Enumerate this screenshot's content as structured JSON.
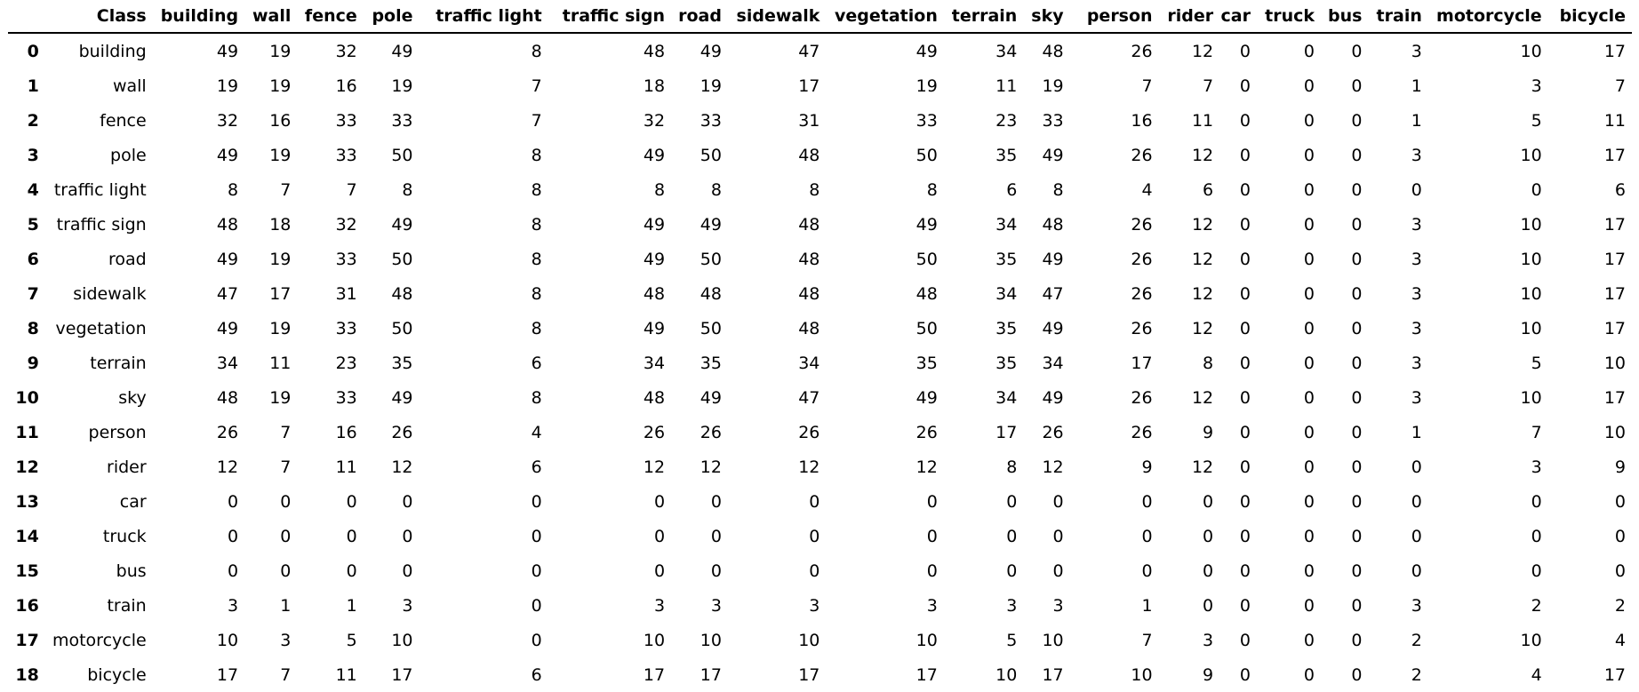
{
  "table": {
    "columns": [
      "",
      "Class",
      "building",
      "wall",
      "fence",
      "pole",
      "traffic light",
      "traffic sign",
      "road",
      "sidewalk",
      "vegetation",
      "terrain",
      "sky",
      "person",
      "rider",
      "car",
      "truck",
      "bus",
      "train",
      "motorcycle",
      "bicycle"
    ],
    "rows": [
      [
        "0",
        "building",
        "49",
        "19",
        "32",
        "49",
        "8",
        "48",
        "49",
        "47",
        "49",
        "34",
        "48",
        "26",
        "12",
        "0",
        "0",
        "0",
        "3",
        "10",
        "17"
      ],
      [
        "1",
        "wall",
        "19",
        "19",
        "16",
        "19",
        "7",
        "18",
        "19",
        "17",
        "19",
        "11",
        "19",
        "7",
        "7",
        "0",
        "0",
        "0",
        "1",
        "3",
        "7"
      ],
      [
        "2",
        "fence",
        "32",
        "16",
        "33",
        "33",
        "7",
        "32",
        "33",
        "31",
        "33",
        "23",
        "33",
        "16",
        "11",
        "0",
        "0",
        "0",
        "1",
        "5",
        "11"
      ],
      [
        "3",
        "pole",
        "49",
        "19",
        "33",
        "50",
        "8",
        "49",
        "50",
        "48",
        "50",
        "35",
        "49",
        "26",
        "12",
        "0",
        "0",
        "0",
        "3",
        "10",
        "17"
      ],
      [
        "4",
        "traffic light",
        "8",
        "7",
        "7",
        "8",
        "8",
        "8",
        "8",
        "8",
        "8",
        "6",
        "8",
        "4",
        "6",
        "0",
        "0",
        "0",
        "0",
        "0",
        "6"
      ],
      [
        "5",
        "traffic sign",
        "48",
        "18",
        "32",
        "49",
        "8",
        "49",
        "49",
        "48",
        "49",
        "34",
        "48",
        "26",
        "12",
        "0",
        "0",
        "0",
        "3",
        "10",
        "17"
      ],
      [
        "6",
        "road",
        "49",
        "19",
        "33",
        "50",
        "8",
        "49",
        "50",
        "48",
        "50",
        "35",
        "49",
        "26",
        "12",
        "0",
        "0",
        "0",
        "3",
        "10",
        "17"
      ],
      [
        "7",
        "sidewalk",
        "47",
        "17",
        "31",
        "48",
        "8",
        "48",
        "48",
        "48",
        "48",
        "34",
        "47",
        "26",
        "12",
        "0",
        "0",
        "0",
        "3",
        "10",
        "17"
      ],
      [
        "8",
        "vegetation",
        "49",
        "19",
        "33",
        "50",
        "8",
        "49",
        "50",
        "48",
        "50",
        "35",
        "49",
        "26",
        "12",
        "0",
        "0",
        "0",
        "3",
        "10",
        "17"
      ],
      [
        "9",
        "terrain",
        "34",
        "11",
        "23",
        "35",
        "6",
        "34",
        "35",
        "34",
        "35",
        "35",
        "34",
        "17",
        "8",
        "0",
        "0",
        "0",
        "3",
        "5",
        "10"
      ],
      [
        "10",
        "sky",
        "48",
        "19",
        "33",
        "49",
        "8",
        "48",
        "49",
        "47",
        "49",
        "34",
        "49",
        "26",
        "12",
        "0",
        "0",
        "0",
        "3",
        "10",
        "17"
      ],
      [
        "11",
        "person",
        "26",
        "7",
        "16",
        "26",
        "4",
        "26",
        "26",
        "26",
        "26",
        "17",
        "26",
        "26",
        "9",
        "0",
        "0",
        "0",
        "1",
        "7",
        "10"
      ],
      [
        "12",
        "rider",
        "12",
        "7",
        "11",
        "12",
        "6",
        "12",
        "12",
        "12",
        "12",
        "8",
        "12",
        "9",
        "12",
        "0",
        "0",
        "0",
        "0",
        "3",
        "9"
      ],
      [
        "13",
        "car",
        "0",
        "0",
        "0",
        "0",
        "0",
        "0",
        "0",
        "0",
        "0",
        "0",
        "0",
        "0",
        "0",
        "0",
        "0",
        "0",
        "0",
        "0",
        "0"
      ],
      [
        "14",
        "truck",
        "0",
        "0",
        "0",
        "0",
        "0",
        "0",
        "0",
        "0",
        "0",
        "0",
        "0",
        "0",
        "0",
        "0",
        "0",
        "0",
        "0",
        "0",
        "0"
      ],
      [
        "15",
        "bus",
        "0",
        "0",
        "0",
        "0",
        "0",
        "0",
        "0",
        "0",
        "0",
        "0",
        "0",
        "0",
        "0",
        "0",
        "0",
        "0",
        "0",
        "0",
        "0"
      ],
      [
        "16",
        "train",
        "3",
        "1",
        "1",
        "3",
        "0",
        "3",
        "3",
        "3",
        "3",
        "3",
        "3",
        "1",
        "0",
        "0",
        "0",
        "0",
        "3",
        "2",
        "2"
      ],
      [
        "17",
        "motorcycle",
        "10",
        "3",
        "5",
        "10",
        "0",
        "10",
        "10",
        "10",
        "10",
        "5",
        "10",
        "7",
        "3",
        "0",
        "0",
        "0",
        "2",
        "10",
        "4"
      ],
      [
        "18",
        "bicycle",
        "17",
        "7",
        "11",
        "17",
        "6",
        "17",
        "17",
        "17",
        "17",
        "10",
        "17",
        "10",
        "9",
        "0",
        "0",
        "0",
        "2",
        "4",
        "17"
      ]
    ]
  }
}
